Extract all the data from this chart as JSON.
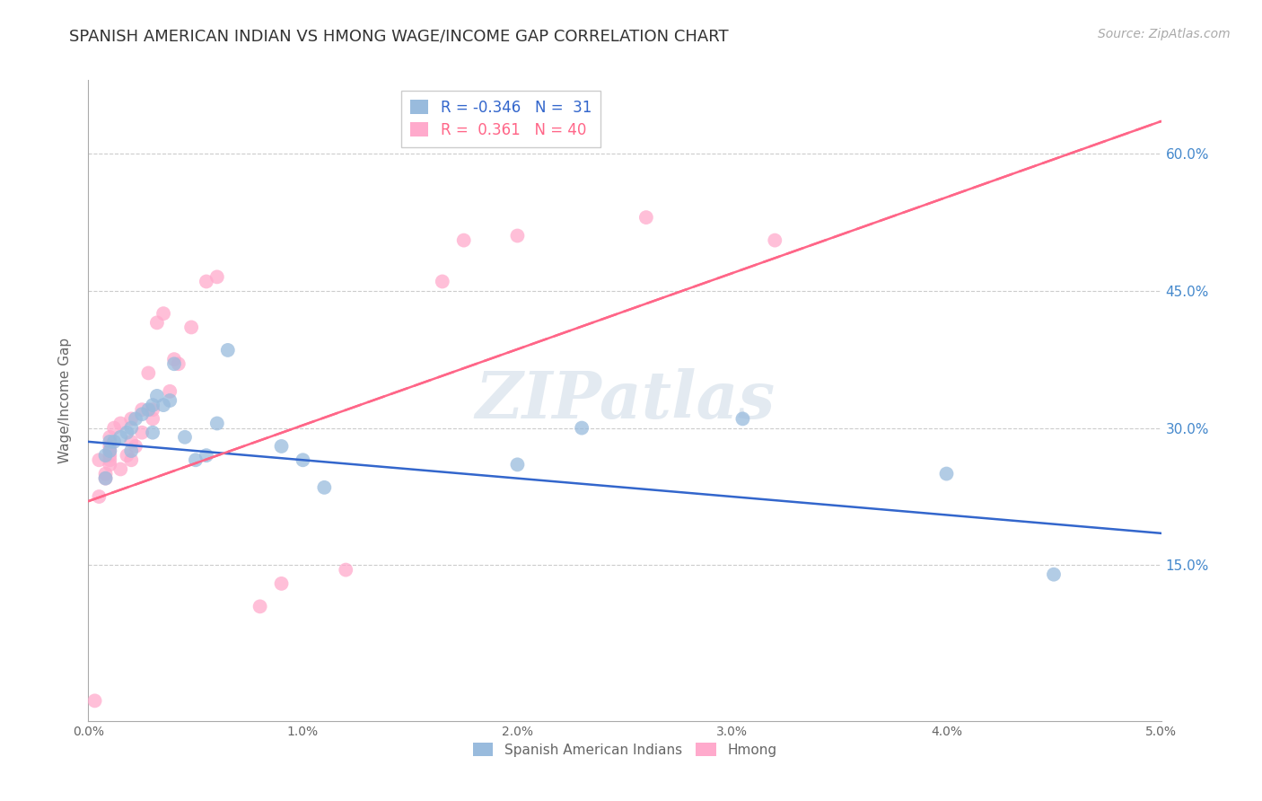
{
  "title": "SPANISH AMERICAN INDIAN VS HMONG WAGE/INCOME GAP CORRELATION CHART",
  "source": "Source: ZipAtlas.com",
  "ylabel": "Wage/Income Gap",
  "x_min": 0.0,
  "x_max": 0.05,
  "y_min": -0.02,
  "y_max": 0.68,
  "yticks": [
    0.15,
    0.3,
    0.45,
    0.6
  ],
  "ytick_labels": [
    "15.0%",
    "30.0%",
    "45.0%",
    "60.0%"
  ],
  "xticks": [
    0.0,
    0.01,
    0.02,
    0.03,
    0.04,
    0.05
  ],
  "xtick_labels": [
    "0.0%",
    "1.0%",
    "2.0%",
    "3.0%",
    "4.0%",
    "5.0%"
  ],
  "blue_color": "#99BBDD",
  "pink_color": "#FFAACC",
  "blue_label": "Spanish American Indians",
  "pink_label": "Hmong",
  "blue_R": -0.346,
  "blue_N": 31,
  "pink_R": 0.361,
  "pink_N": 40,
  "watermark": "ZIPatlas",
  "blue_line_color": "#3366CC",
  "pink_line_color": "#FF6688",
  "blue_trend_x": [
    0.0,
    0.05
  ],
  "blue_trend_y": [
    0.285,
    0.185
  ],
  "pink_trend_x": [
    0.0,
    0.05
  ],
  "pink_trend_y": [
    0.22,
    0.635
  ],
  "blue_scatter_x": [
    0.0008,
    0.0008,
    0.001,
    0.001,
    0.0012,
    0.0015,
    0.0018,
    0.002,
    0.002,
    0.0022,
    0.0025,
    0.0028,
    0.003,
    0.003,
    0.0032,
    0.0035,
    0.0038,
    0.004,
    0.0045,
    0.005,
    0.0055,
    0.006,
    0.0065,
    0.009,
    0.01,
    0.011,
    0.02,
    0.023,
    0.0305,
    0.04,
    0.045
  ],
  "blue_scatter_y": [
    0.245,
    0.27,
    0.275,
    0.285,
    0.285,
    0.29,
    0.295,
    0.275,
    0.3,
    0.31,
    0.315,
    0.32,
    0.295,
    0.325,
    0.335,
    0.325,
    0.33,
    0.37,
    0.29,
    0.265,
    0.27,
    0.305,
    0.385,
    0.28,
    0.265,
    0.235,
    0.26,
    0.3,
    0.31,
    0.25,
    0.14
  ],
  "pink_scatter_x": [
    0.0003,
    0.0005,
    0.0005,
    0.0008,
    0.0008,
    0.001,
    0.001,
    0.001,
    0.001,
    0.001,
    0.001,
    0.0012,
    0.0015,
    0.0015,
    0.0018,
    0.002,
    0.002,
    0.002,
    0.0022,
    0.0025,
    0.0025,
    0.0028,
    0.003,
    0.003,
    0.0032,
    0.0035,
    0.0038,
    0.004,
    0.0042,
    0.0048,
    0.0055,
    0.006,
    0.008,
    0.009,
    0.012,
    0.0165,
    0.0175,
    0.02,
    0.026,
    0.032
  ],
  "pink_scatter_y": [
    0.002,
    0.225,
    0.265,
    0.245,
    0.25,
    0.26,
    0.265,
    0.27,
    0.275,
    0.28,
    0.29,
    0.3,
    0.255,
    0.305,
    0.27,
    0.265,
    0.285,
    0.31,
    0.28,
    0.295,
    0.32,
    0.36,
    0.31,
    0.32,
    0.415,
    0.425,
    0.34,
    0.375,
    0.37,
    0.41,
    0.46,
    0.465,
    0.105,
    0.13,
    0.145,
    0.46,
    0.505,
    0.51,
    0.53,
    0.505
  ]
}
